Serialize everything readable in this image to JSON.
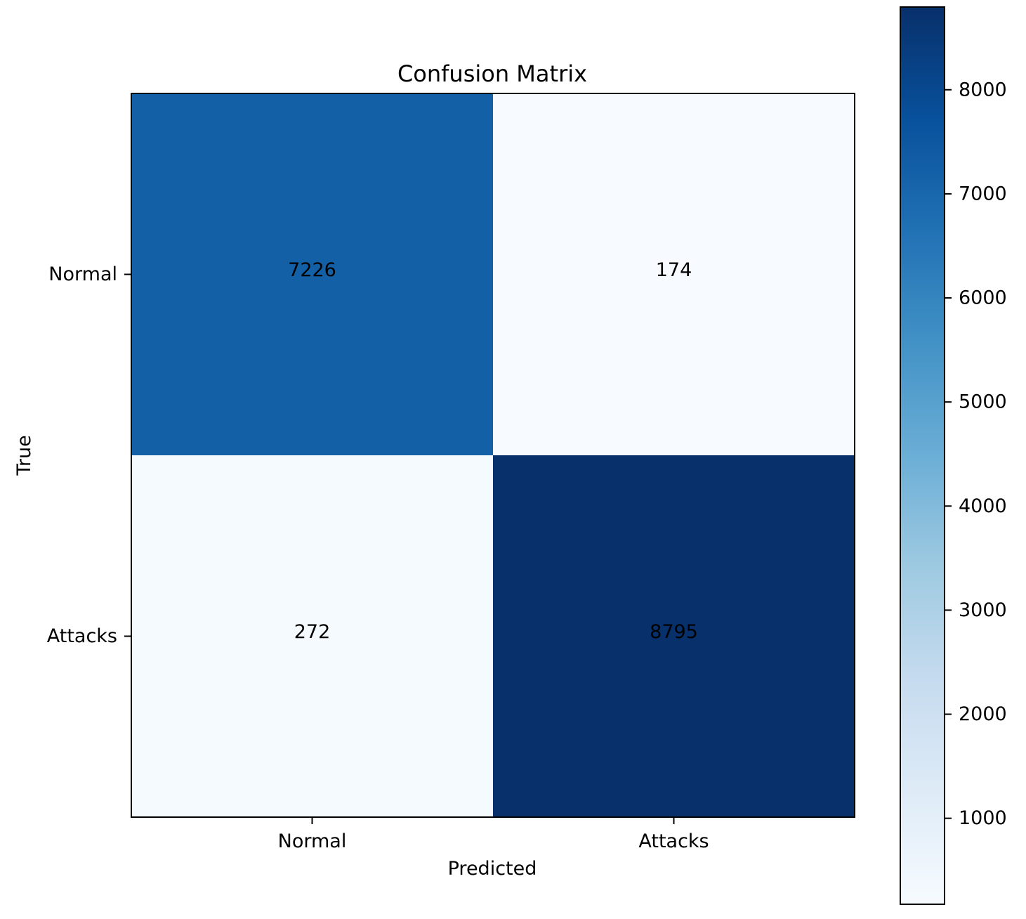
{
  "chart_data": {
    "type": "heatmap",
    "title": "Confusion Matrix",
    "xlabel": "Predicted",
    "ylabel": "True",
    "x_categories": [
      "Normal",
      "Attacks"
    ],
    "y_categories": [
      "Normal",
      "Attacks"
    ],
    "values": [
      [
        7226,
        174
      ],
      [
        272,
        8795
      ]
    ],
    "value_labels": [
      [
        "7226",
        "174"
      ],
      [
        "272",
        "8795"
      ]
    ],
    "colormap": "Blues",
    "colorbar": {
      "range": [
        174,
        8795
      ],
      "ticks": [
        1000,
        2000,
        3000,
        4000,
        5000,
        6000,
        7000,
        8000
      ],
      "tick_labels": [
        "1000",
        "2000",
        "3000",
        "4000",
        "5000",
        "6000",
        "7000",
        "8000"
      ]
    },
    "grid": false,
    "legend": "colorbar-right"
  }
}
